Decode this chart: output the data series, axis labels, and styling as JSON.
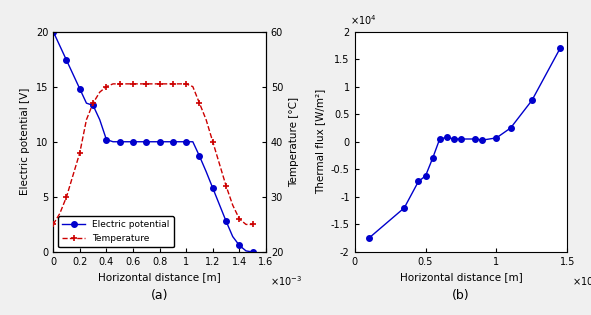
{
  "ep_x": [
    0,
    0.05,
    0.1,
    0.15,
    0.2,
    0.25,
    0.3,
    0.35,
    0.4,
    0.45,
    0.5,
    0.55,
    0.6,
    0.65,
    0.7,
    0.75,
    0.8,
    0.85,
    0.9,
    0.95,
    1.0,
    1.05,
    1.1,
    1.15,
    1.2,
    1.25,
    1.3,
    1.35,
    1.4,
    1.45,
    1.5
  ],
  "ep_y": [
    20,
    18.7,
    17.4,
    16.1,
    14.8,
    13.5,
    13.3,
    12.0,
    10.2,
    10.0,
    10.0,
    10.0,
    10.0,
    10.0,
    10.0,
    10.0,
    10.0,
    10.0,
    10.0,
    10.0,
    10.0,
    10.0,
    8.7,
    7.3,
    5.8,
    4.3,
    2.8,
    1.4,
    0.6,
    0.1,
    0.0
  ],
  "temp_x": [
    0,
    0.05,
    0.1,
    0.15,
    0.2,
    0.25,
    0.3,
    0.35,
    0.4,
    0.45,
    0.5,
    0.55,
    0.6,
    0.65,
    0.7,
    0.75,
    0.8,
    0.85,
    0.9,
    0.95,
    1.0,
    1.05,
    1.1,
    1.15,
    1.2,
    1.25,
    1.3,
    1.35,
    1.4,
    1.45,
    1.5
  ],
  "temp_y": [
    25,
    27,
    30,
    34,
    38,
    44,
    47,
    49,
    50,
    50.5,
    50.5,
    50.5,
    50.5,
    50.5,
    50.5,
    50.5,
    50.5,
    50.5,
    50.5,
    50.5,
    50.5,
    50.0,
    47,
    44,
    40,
    36,
    32,
    28.5,
    26,
    25,
    25
  ],
  "ep_marker_x": [
    0,
    0.1,
    0.2,
    0.3,
    0.4,
    0.5,
    0.6,
    0.7,
    0.8,
    0.9,
    1.0,
    1.1,
    1.2,
    1.3,
    1.4,
    1.5
  ],
  "ep_marker_y": [
    20,
    17.4,
    14.8,
    13.3,
    10.2,
    10.0,
    10.0,
    10.0,
    10.0,
    10.0,
    10.0,
    8.7,
    5.8,
    2.8,
    0.6,
    0.0
  ],
  "temp_marker_x": [
    0,
    0.1,
    0.2,
    0.3,
    0.4,
    0.5,
    0.6,
    0.7,
    0.8,
    0.9,
    1.0,
    1.1,
    1.2,
    1.3,
    1.4,
    1.5
  ],
  "temp_marker_y": [
    25,
    30,
    38,
    47,
    50,
    50.5,
    50.5,
    50.5,
    50.5,
    50.5,
    50.5,
    47,
    40,
    32,
    26,
    25
  ],
  "ep_color": "#0000CC",
  "temp_color": "#CC0000",
  "ep_xlim": [
    0,
    1.6
  ],
  "ep_ylim": [
    0,
    20
  ],
  "temp_ylim": [
    20,
    60
  ],
  "ep_yticks": [
    0,
    5,
    10,
    15,
    20
  ],
  "temp_yticks": [
    20,
    30,
    40,
    50,
    60
  ],
  "ep_xticks": [
    0,
    0.2,
    0.4,
    0.6,
    0.8,
    1.0,
    1.2,
    1.4,
    1.6
  ],
  "flux_x": [
    0.1,
    0.35,
    0.45,
    0.5,
    0.55,
    0.6,
    0.65,
    0.7,
    0.75,
    0.85,
    0.9,
    1.0,
    1.1,
    1.25,
    1.45
  ],
  "flux_y": [
    -1.75,
    -1.2,
    -0.72,
    -0.62,
    -0.3,
    0.05,
    0.08,
    0.05,
    0.05,
    0.05,
    0.03,
    0.07,
    0.25,
    0.75,
    1.7
  ],
  "flux_xlim": [
    0,
    1.5
  ],
  "flux_ylim": [
    -2,
    2
  ],
  "flux_yticks": [
    -2,
    -1.5,
    -1,
    -0.5,
    0,
    0.5,
    1,
    1.5,
    2
  ],
  "flux_xticks": [
    0,
    0.5,
    1.0,
    1.5
  ],
  "xlabel": "Horizontal distance [m]",
  "ep_ylabel": "Electric potential [V]",
  "temp_ylabel": "Temperature [°C]",
  "flux_ylabel": "Thermal flux [W/m²]",
  "ep_legend": "Electric potential",
  "temp_legend": "Temperature",
  "bg_color": "#f0f0f0",
  "axes_bg": "#ffffff"
}
